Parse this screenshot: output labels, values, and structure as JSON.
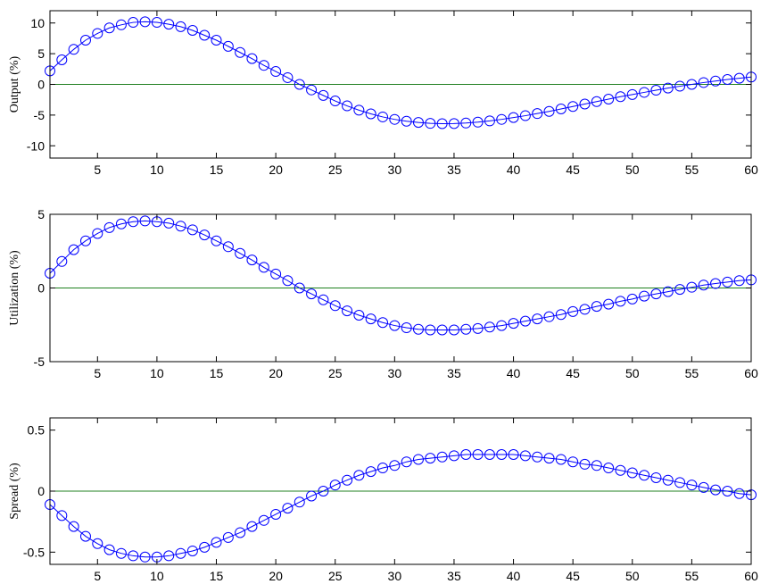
{
  "chart_data": [
    {
      "type": "line",
      "ylabel": "Output (%)",
      "xlim": [
        1,
        60
      ],
      "ylim": [
        -12,
        12
      ],
      "xticks": [
        5,
        10,
        15,
        20,
        25,
        30,
        35,
        40,
        45,
        50,
        55,
        60
      ],
      "yticks": [
        -10,
        -5,
        0,
        5,
        10
      ],
      "reference_line": 0,
      "grid": false,
      "series_color": "#0000ff",
      "reference_color": "#208020",
      "x": [
        1,
        2,
        3,
        4,
        5,
        6,
        7,
        8,
        9,
        10,
        11,
        12,
        13,
        14,
        15,
        16,
        17,
        18,
        19,
        20,
        21,
        22,
        23,
        24,
        25,
        26,
        27,
        28,
        29,
        30,
        31,
        32,
        33,
        34,
        35,
        36,
        37,
        38,
        39,
        40,
        41,
        42,
        43,
        44,
        45,
        46,
        47,
        48,
        49,
        50,
        51,
        52,
        53,
        54,
        55,
        56,
        57,
        58,
        59,
        60
      ],
      "values": [
        2.2,
        4.0,
        5.7,
        7.2,
        8.3,
        9.2,
        9.7,
        10.1,
        10.2,
        10.1,
        9.8,
        9.4,
        8.8,
        8.0,
        7.2,
        6.2,
        5.2,
        4.2,
        3.1,
        2.1,
        1.1,
        0.0,
        -0.9,
        -1.8,
        -2.7,
        -3.5,
        -4.2,
        -4.8,
        -5.3,
        -5.7,
        -6.0,
        -6.2,
        -6.35,
        -6.4,
        -6.38,
        -6.3,
        -6.15,
        -5.95,
        -5.7,
        -5.4,
        -5.1,
        -4.75,
        -4.4,
        -4.0,
        -3.6,
        -3.2,
        -2.8,
        -2.4,
        -2.0,
        -1.65,
        -1.3,
        -0.95,
        -0.6,
        -0.3,
        0.0,
        0.3,
        0.55,
        0.8,
        1.0,
        1.2
      ]
    },
    {
      "type": "line",
      "ylabel": "Utilization (%)",
      "xlim": [
        1,
        60
      ],
      "ylim": [
        -5,
        5
      ],
      "xticks": [
        5,
        10,
        15,
        20,
        25,
        30,
        35,
        40,
        45,
        50,
        55,
        60
      ],
      "yticks": [
        -5,
        0,
        5
      ],
      "reference_line": 0,
      "grid": false,
      "series_color": "#0000ff",
      "reference_color": "#208020",
      "x": [
        1,
        2,
        3,
        4,
        5,
        6,
        7,
        8,
        9,
        10,
        11,
        12,
        13,
        14,
        15,
        16,
        17,
        18,
        19,
        20,
        21,
        22,
        23,
        24,
        25,
        26,
        27,
        28,
        29,
        30,
        31,
        32,
        33,
        34,
        35,
        36,
        37,
        38,
        39,
        40,
        41,
        42,
        43,
        44,
        45,
        46,
        47,
        48,
        49,
        50,
        51,
        52,
        53,
        54,
        55,
        56,
        57,
        58,
        59,
        60
      ],
      "values": [
        1.0,
        1.8,
        2.6,
        3.2,
        3.7,
        4.1,
        4.35,
        4.5,
        4.55,
        4.5,
        4.4,
        4.2,
        3.95,
        3.6,
        3.2,
        2.8,
        2.35,
        1.9,
        1.4,
        0.95,
        0.5,
        0.0,
        -0.4,
        -0.8,
        -1.2,
        -1.55,
        -1.85,
        -2.1,
        -2.35,
        -2.55,
        -2.7,
        -2.8,
        -2.85,
        -2.85,
        -2.85,
        -2.8,
        -2.75,
        -2.65,
        -2.55,
        -2.4,
        -2.25,
        -2.1,
        -1.95,
        -1.8,
        -1.6,
        -1.45,
        -1.25,
        -1.1,
        -0.9,
        -0.75,
        -0.55,
        -0.4,
        -0.25,
        -0.1,
        0.05,
        0.2,
        0.3,
        0.4,
        0.5,
        0.55
      ]
    },
    {
      "type": "line",
      "ylabel": "Spread (%)",
      "xlim": [
        1,
        60
      ],
      "ylim": [
        -0.6,
        0.6
      ],
      "xticks": [
        5,
        10,
        15,
        20,
        25,
        30,
        35,
        40,
        45,
        50,
        55,
        60
      ],
      "yticks": [
        -0.5,
        0,
        0.5
      ],
      "ytick_labels": [
        "-0.5",
        "0",
        "0.5"
      ],
      "reference_line": 0,
      "grid": false,
      "series_color": "#0000ff",
      "reference_color": "#208020",
      "x": [
        1,
        2,
        3,
        4,
        5,
        6,
        7,
        8,
        9,
        10,
        11,
        12,
        13,
        14,
        15,
        16,
        17,
        18,
        19,
        20,
        21,
        22,
        23,
        24,
        25,
        26,
        27,
        28,
        29,
        30,
        31,
        32,
        33,
        34,
        35,
        36,
        37,
        38,
        39,
        40,
        41,
        42,
        43,
        44,
        45,
        46,
        47,
        48,
        49,
        50,
        51,
        52,
        53,
        54,
        55,
        56,
        57,
        58,
        59,
        60
      ],
      "values": [
        -0.11,
        -0.2,
        -0.29,
        -0.37,
        -0.43,
        -0.48,
        -0.51,
        -0.53,
        -0.54,
        -0.54,
        -0.53,
        -0.51,
        -0.49,
        -0.46,
        -0.42,
        -0.38,
        -0.34,
        -0.29,
        -0.24,
        -0.19,
        -0.14,
        -0.09,
        -0.04,
        0.0,
        0.05,
        0.09,
        0.13,
        0.16,
        0.19,
        0.21,
        0.24,
        0.26,
        0.27,
        0.28,
        0.29,
        0.3,
        0.3,
        0.3,
        0.3,
        0.3,
        0.29,
        0.28,
        0.27,
        0.26,
        0.24,
        0.22,
        0.21,
        0.19,
        0.17,
        0.15,
        0.13,
        0.11,
        0.09,
        0.07,
        0.05,
        0.03,
        0.01,
        0.0,
        -0.02,
        -0.03
      ]
    }
  ]
}
